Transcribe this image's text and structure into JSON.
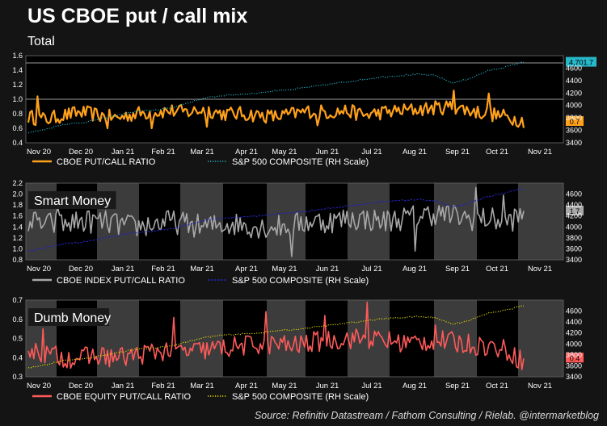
{
  "title": "US CBOE put / call mix",
  "source": "Source: Refinitiv Datastream / Fathom Consulting / Rielab. @intermarketblog",
  "colors": {
    "background": "#141414",
    "plot_background": "#000000",
    "shade": "#3c3c3c",
    "orange": "#ffa11a",
    "teal": "#26b7c9",
    "grey": "#a8a8a8",
    "navy": "#2323b8",
    "red": "#ff5a5a",
    "yellow": "#e8e000"
  },
  "chart_data": [
    {
      "type": "line",
      "subtitle": "Total",
      "panel_label": "",
      "months": [
        "Nov 20",
        "Dec 20",
        "Jan 21",
        "Feb 21",
        "Mar 21",
        "Apr 21",
        "May 21",
        "Jun 21",
        "Jul 21",
        "Aug 21",
        "Sep 21",
        "Oct 21",
        "Nov 21"
      ],
      "ylim": [
        0.4,
        1.6
      ],
      "left_ticks": [
        "0.4",
        "0.6",
        "0.8",
        "1.0",
        "1.2",
        "1.4",
        "1.6"
      ],
      "right_ylim": [
        3400,
        4800
      ],
      "right_ticks": [
        "3400",
        "3600",
        "3800",
        "4000",
        "4200",
        "4400",
        "4600"
      ],
      "hlines": [
        1.0,
        1.5
      ],
      "last_label": "0.7",
      "right_last_label": "4,701.7",
      "series": [
        {
          "name": "CBOE PUT/CALL RATIO",
          "axis": "left",
          "style": "solid",
          "color": "#ffa11a",
          "anchors": [
            0.76,
            0.72,
            0.78,
            0.82,
            0.78,
            0.74,
            0.8,
            0.82,
            0.84,
            0.82,
            0.86,
            0.8,
            0.8,
            0.78,
            0.76,
            0.8,
            0.84,
            0.82,
            0.84,
            0.78,
            0.82,
            0.84,
            0.86,
            0.88,
            0.9,
            0.84,
            0.8,
            0.76,
            0.7
          ],
          "noise": 0.1,
          "spikes": [
            [
              0.017,
              1.04
            ],
            [
              0.16,
              0.6
            ],
            [
              0.25,
              0.6
            ],
            [
              0.36,
              0.62
            ],
            [
              0.585,
              0.64
            ],
            [
              0.86,
              1.12
            ],
            [
              0.93,
              1.08
            ]
          ]
        },
        {
          "name": "S&P 500 COMPOSITE (RH Scale)",
          "axis": "right",
          "style": "dotted",
          "color": "#26b7c9",
          "anchors": [
            3560,
            3620,
            3700,
            3720,
            3780,
            3840,
            3900,
            3920,
            3960,
            4040,
            4120,
            4160,
            4180,
            4200,
            4240,
            4260,
            4300,
            4340,
            4380,
            4420,
            4460,
            4480,
            4500,
            4480,
            4360,
            4440,
            4560,
            4620,
            4702
          ],
          "noise": 12,
          "spikes": []
        }
      ]
    },
    {
      "type": "line",
      "subtitle": "",
      "panel_label": "Smart Money",
      "months": [
        "Nov 20",
        "Dec 20",
        "Jan 21",
        "Feb 21",
        "Mar 21",
        "Apr 21",
        "May 21",
        "Jun 21",
        "Jul 21",
        "Aug 21",
        "Sep 21",
        "Oct 21",
        "Nov 21"
      ],
      "ylim": [
        0.8,
        2.2
      ],
      "left_ticks": [
        "0.8",
        "1.0",
        "1.2",
        "1.4",
        "1.6",
        "1.8",
        "2.0",
        "2.2"
      ],
      "right_ylim": [
        3400,
        4800
      ],
      "right_ticks": [
        "3400",
        "3600",
        "3800",
        "4000",
        "4200",
        "4400",
        "4600"
      ],
      "hlines": [],
      "last_label": "1.7",
      "right_last_label": "",
      "series": [
        {
          "name": "CBOE INDEX PUT/CALL RATIO",
          "axis": "left",
          "style": "solid",
          "color": "#a8a8a8",
          "anchors": [
            1.5,
            1.45,
            1.45,
            1.5,
            1.5,
            1.45,
            1.4,
            1.45,
            1.5,
            1.45,
            1.4,
            1.45,
            1.45,
            1.4,
            1.4,
            1.45,
            1.5,
            1.5,
            1.55,
            1.55,
            1.5,
            1.55,
            1.6,
            1.65,
            1.6,
            1.55,
            1.55,
            1.5,
            1.6
          ],
          "noise": 0.22,
          "spikes": [
            [
              0.06,
              1.75
            ],
            [
              0.53,
              0.86
            ],
            [
              0.78,
              0.96
            ],
            [
              0.905,
              2.12
            ],
            [
              0.96,
              1.98
            ]
          ]
        },
        {
          "name": "S&P 500 COMPOSITE (RH Scale)",
          "axis": "right",
          "style": "dashed",
          "color": "#2323b8",
          "anchors": [
            3560,
            3620,
            3700,
            3720,
            3780,
            3840,
            3900,
            3920,
            3960,
            4040,
            4120,
            4160,
            4180,
            4200,
            4240,
            4260,
            4300,
            4340,
            4380,
            4420,
            4460,
            4480,
            4500,
            4480,
            4360,
            4440,
            4560,
            4620,
            4702
          ],
          "noise": 12,
          "spikes": []
        }
      ]
    },
    {
      "type": "line",
      "subtitle": "",
      "panel_label": "Dumb Money",
      "months": [
        "Nov 20",
        "Dec 20",
        "Jan 21",
        "Feb 21",
        "Mar 21",
        "Apr 21",
        "May 21",
        "Jun 21",
        "Jul 21",
        "Aug 21",
        "Sep 21",
        "Oct 21",
        "Nov 21"
      ],
      "ylim": [
        0.3,
        0.7
      ],
      "left_ticks": [
        "0.3",
        "0.4",
        "0.5",
        "0.6",
        "0.7"
      ],
      "right_ylim": [
        3400,
        4800
      ],
      "right_ticks": [
        "3400",
        "3600",
        "3800",
        "4000",
        "4200",
        "4400",
        "4600"
      ],
      "hlines": [],
      "last_label": "0.4",
      "right_last_label": "",
      "series": [
        {
          "name": "CBOE EQUITY PUT/CALL RATIO",
          "axis": "left",
          "style": "solid",
          "color": "#ff5a5a",
          "anchors": [
            0.44,
            0.42,
            0.4,
            0.4,
            0.41,
            0.4,
            0.41,
            0.43,
            0.44,
            0.43,
            0.44,
            0.45,
            0.46,
            0.47,
            0.47,
            0.46,
            0.48,
            0.49,
            0.5,
            0.5,
            0.49,
            0.48,
            0.48,
            0.49,
            0.48,
            0.47,
            0.46,
            0.44,
            0.38
          ],
          "noise": 0.055,
          "spikes": [
            [
              0.03,
              0.55
            ],
            [
              0.295,
              0.61
            ],
            [
              0.48,
              0.64
            ],
            [
              0.6,
              0.62
            ],
            [
              0.685,
              0.69
            ],
            [
              0.82,
              0.57
            ]
          ]
        },
        {
          "name": "S&P 500 COMPOSITE (RH Scale)",
          "axis": "right",
          "style": "dotted",
          "color": "#e8e000",
          "anchors": [
            3560,
            3620,
            3700,
            3720,
            3780,
            3840,
            3900,
            3920,
            3960,
            4040,
            4120,
            4160,
            4180,
            4200,
            4240,
            4260,
            4300,
            4340,
            4380,
            4420,
            4460,
            4480,
            4500,
            4480,
            4360,
            4440,
            4560,
            4620,
            4702
          ],
          "noise": 12,
          "spikes": []
        }
      ]
    }
  ]
}
